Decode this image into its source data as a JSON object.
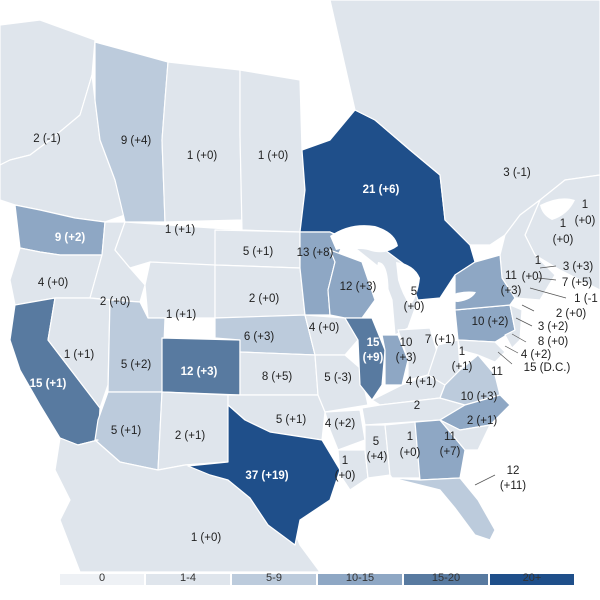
{
  "colors": {
    "c0": "#eef1f5",
    "c1": "#dfe5ec",
    "c2": "#bccbdc",
    "c3": "#8ea7c4",
    "c4": "#587aa0",
    "c5": "#1f4f8a",
    "water": "#ffffff"
  },
  "legend": [
    {
      "label": "0",
      "color": "#eef1f5"
    },
    {
      "label": "1-4",
      "color": "#dfe5ec"
    },
    {
      "label": "5-9",
      "color": "#bccbdc"
    },
    {
      "label": "10-15",
      "color": "#8ea7c4"
    },
    {
      "label": "15-20",
      "color": "#587aa0"
    },
    {
      "label": "20+",
      "color": "#1f4f8a"
    }
  ],
  "labels": {
    "l1": "2 (-1)",
    "l2": "9 (+4)",
    "l3": "1 (+0)",
    "l4": "1 (+0)",
    "l5": "21 (+6)",
    "l6": "3 (-1)",
    "l7": "1",
    "l8": "(+0)",
    "l9": "1",
    "l10": "(+0)",
    "l11": "9 (+2)",
    "l12": "1 (+1)",
    "l13": "5 (+1)",
    "l14": "13 (+8)",
    "l15": "1",
    "l16": "(+0)",
    "l17": "11",
    "l18": "(+3)",
    "l19": "3 (+3)",
    "l20": "7 (+5)",
    "l21": "1 (-1",
    "l22": "2 (+0)",
    "l23": "4 (+0)",
    "l24": "2 (+0)",
    "l25": "1 (+1)",
    "l26": "2 (+0)",
    "l27": "12 (+3)",
    "l28": "5",
    "l29": "(+0)",
    "l30": "10 (+2)",
    "l31": "3 (+2)",
    "l32": "8 (+0)",
    "l33": "4 (+2)",
    "l34": "15 (D.C.)",
    "l35": "6 (+3)",
    "l36": "4 (+0)",
    "l37": "15",
    "l38": "(+9)",
    "l39": "10",
    "l40": "(+3)",
    "l41": "7 (+1)",
    "l42": "1",
    "l43": "(+1)",
    "l44": "1 (+1)",
    "l45": "5 (+2)",
    "l46": "12 (+3)",
    "l47": "8 (+5)",
    "l48": "5 (-3)",
    "l49": "4 (+1)",
    "l50": "11",
    "l51": "2",
    "l52": "10 (+3)",
    "l53": "15 (+1)",
    "l54": "5 (+1)",
    "l55": "2 (+1)",
    "l56": "5 (+1)",
    "l57": "4 (+2)",
    "l58": "5",
    "l59": "(+4)",
    "l60": "1",
    "l61": "(+0)",
    "l62": "11",
    "l63": "(+7)",
    "l64": "2 (+1)",
    "l65": "37 (+19)",
    "l66": "1",
    "l67": "(+0)",
    "l68": "12",
    "l69": "(+11)",
    "l70": "1 (+0)"
  }
}
